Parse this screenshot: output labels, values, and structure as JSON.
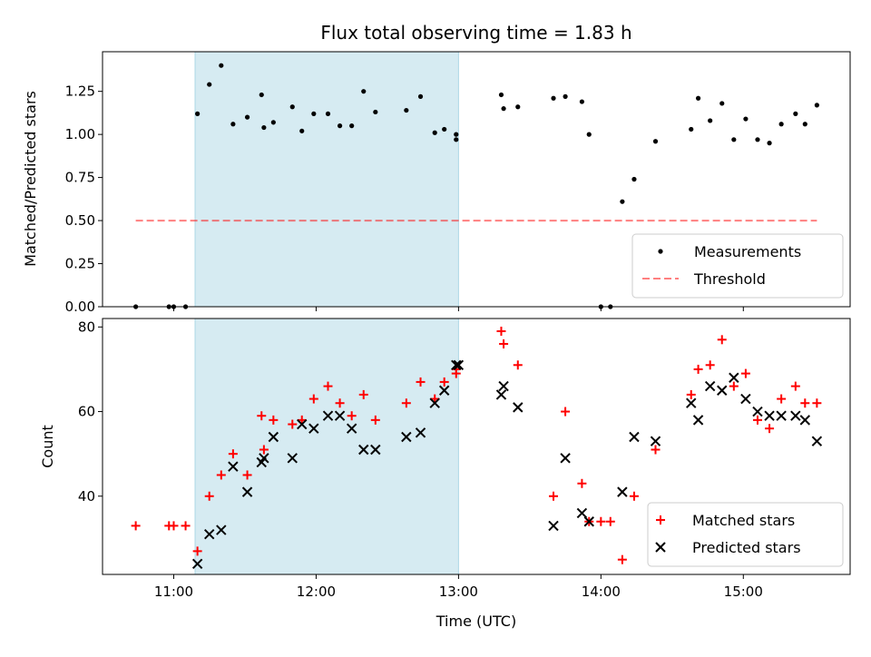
{
  "colors": {
    "shade": "#add8e6",
    "measurement": "#000000",
    "threshold": "#ff0000",
    "matched": "#ff0000",
    "predicted": "#000000"
  },
  "chart_data": [
    {
      "type": "scatter",
      "title": "Flux total observing time = 1.83 h",
      "xlabel": "",
      "ylabel": "Matched/Predicted stars",
      "x_unit": "time UTC",
      "xlim": [
        "10:30",
        "15:45"
      ],
      "ylim": [
        0,
        1.48
      ],
      "yticks": [
        0,
        0.25,
        0.5,
        0.75,
        1.0,
        1.25
      ],
      "ytick_labels": [
        "0.00",
        "0.25",
        "0.50",
        "0.75",
        "1.00",
        "1.25"
      ],
      "xticks": [
        "11:00",
        "12:00",
        "13:00",
        "14:00",
        "15:00"
      ],
      "shaded_span": [
        "11:09",
        "13:00"
      ],
      "legend": "lower-right",
      "series": [
        {
          "name": "Measurements",
          "marker": "dot",
          "points": [
            [
              "10:44",
              0.0
            ],
            [
              "10:58",
              0.0
            ],
            [
              "11:00",
              0.0
            ],
            [
              "11:05",
              0.0
            ],
            [
              "11:10",
              1.12
            ],
            [
              "11:15",
              1.29
            ],
            [
              "11:20",
              1.4
            ],
            [
              "11:25",
              1.06
            ],
            [
              "11:31",
              1.1
            ],
            [
              "11:37",
              1.23
            ],
            [
              "11:38",
              1.04
            ],
            [
              "11:42",
              1.07
            ],
            [
              "11:50",
              1.16
            ],
            [
              "11:54",
              1.02
            ],
            [
              "11:59",
              1.12
            ],
            [
              "12:05",
              1.12
            ],
            [
              "12:10",
              1.05
            ],
            [
              "12:15",
              1.05
            ],
            [
              "12:20",
              1.25
            ],
            [
              "12:25",
              1.13
            ],
            [
              "12:38",
              1.14
            ],
            [
              "12:44",
              1.22
            ],
            [
              "12:50",
              1.01
            ],
            [
              "12:54",
              1.03
            ],
            [
              "12:59",
              0.97
            ],
            [
              "12:59",
              1.0
            ],
            [
              "13:18",
              1.23
            ],
            [
              "13:19",
              1.15
            ],
            [
              "13:25",
              1.16
            ],
            [
              "13:40",
              1.21
            ],
            [
              "13:45",
              1.22
            ],
            [
              "13:52",
              1.19
            ],
            [
              "13:55",
              1.0
            ],
            [
              "14:00",
              0.0
            ],
            [
              "14:04",
              0.0
            ],
            [
              "14:09",
              0.61
            ],
            [
              "14:14",
              0.74
            ],
            [
              "14:23",
              0.96
            ],
            [
              "14:38",
              1.03
            ],
            [
              "14:41",
              1.21
            ],
            [
              "14:46",
              1.08
            ],
            [
              "14:51",
              1.18
            ],
            [
              "14:56",
              0.97
            ],
            [
              "15:01",
              1.09
            ],
            [
              "15:06",
              0.97
            ],
            [
              "15:11",
              0.95
            ],
            [
              "15:16",
              1.06
            ],
            [
              "15:22",
              1.12
            ],
            [
              "15:26",
              1.06
            ],
            [
              "15:31",
              1.17
            ]
          ]
        },
        {
          "name": "Threshold",
          "style": "dashed",
          "points": [
            [
              "10:44",
              0.5
            ],
            [
              "15:31",
              0.5
            ]
          ]
        }
      ]
    },
    {
      "type": "scatter",
      "title": "",
      "xlabel": "Time (UTC)",
      "ylabel": "Count",
      "x_unit": "time UTC",
      "xlim": [
        "10:30",
        "15:45"
      ],
      "ylim": [
        21.5,
        82
      ],
      "yticks": [
        40,
        60,
        80
      ],
      "ytick_labels": [
        "40",
        "60",
        "80"
      ],
      "xticks": [
        "11:00",
        "12:00",
        "13:00",
        "14:00",
        "15:00"
      ],
      "xtick_labels": [
        "11:00",
        "12:00",
        "13:00",
        "14:00",
        "15:00"
      ],
      "shaded_span": [
        "11:09",
        "13:00"
      ],
      "legend": "lower-right",
      "series": [
        {
          "name": "Matched stars",
          "marker": "plus",
          "points": [
            [
              "10:44",
              33
            ],
            [
              "10:58",
              33
            ],
            [
              "11:00",
              33
            ],
            [
              "11:05",
              33
            ],
            [
              "11:10",
              27
            ],
            [
              "11:15",
              40
            ],
            [
              "11:20",
              45
            ],
            [
              "11:25",
              50
            ],
            [
              "11:31",
              45
            ],
            [
              "11:37",
              59
            ],
            [
              "11:38",
              51
            ],
            [
              "11:42",
              58
            ],
            [
              "11:50",
              57
            ],
            [
              "11:54",
              58
            ],
            [
              "11:59",
              63
            ],
            [
              "12:05",
              66
            ],
            [
              "12:10",
              62
            ],
            [
              "12:15",
              59
            ],
            [
              "12:20",
              64
            ],
            [
              "12:25",
              58
            ],
            [
              "12:38",
              62
            ],
            [
              "12:44",
              67
            ],
            [
              "12:50",
              63
            ],
            [
              "12:54",
              67
            ],
            [
              "12:59",
              69
            ],
            [
              "12:59",
              70
            ],
            [
              "13:18",
              79
            ],
            [
              "13:19",
              76
            ],
            [
              "13:25",
              71
            ],
            [
              "13:40",
              40
            ],
            [
              "13:45",
              60
            ],
            [
              "13:52",
              43
            ],
            [
              "13:55",
              34
            ],
            [
              "14:00",
              34
            ],
            [
              "14:04",
              34
            ],
            [
              "14:09",
              25
            ],
            [
              "14:14",
              40
            ],
            [
              "14:23",
              51
            ],
            [
              "14:38",
              64
            ],
            [
              "14:41",
              70
            ],
            [
              "14:46",
              71
            ],
            [
              "14:51",
              77
            ],
            [
              "14:56",
              66
            ],
            [
              "15:01",
              69
            ],
            [
              "15:06",
              58
            ],
            [
              "15:11",
              56
            ],
            [
              "15:16",
              63
            ],
            [
              "15:22",
              66
            ],
            [
              "15:26",
              62
            ],
            [
              "15:31",
              62
            ]
          ]
        },
        {
          "name": "Predicted stars",
          "marker": "x",
          "points": [
            [
              "11:10",
              24
            ],
            [
              "11:15",
              31
            ],
            [
              "11:20",
              32
            ],
            [
              "11:25",
              47
            ],
            [
              "11:31",
              41
            ],
            [
              "11:37",
              48
            ],
            [
              "11:38",
              49
            ],
            [
              "11:42",
              54
            ],
            [
              "11:50",
              49
            ],
            [
              "11:54",
              57
            ],
            [
              "11:59",
              56
            ],
            [
              "12:05",
              59
            ],
            [
              "12:10",
              59
            ],
            [
              "12:15",
              56
            ],
            [
              "12:20",
              51
            ],
            [
              "12:25",
              51
            ],
            [
              "12:38",
              54
            ],
            [
              "12:44",
              55
            ],
            [
              "12:50",
              62
            ],
            [
              "12:54",
              65
            ],
            [
              "12:59",
              71
            ],
            [
              "13:00",
              71
            ],
            [
              "13:18",
              64
            ],
            [
              "13:19",
              66
            ],
            [
              "13:25",
              61
            ],
            [
              "13:40",
              33
            ],
            [
              "13:45",
              49
            ],
            [
              "13:52",
              36
            ],
            [
              "13:55",
              34
            ],
            [
              "14:09",
              41
            ],
            [
              "14:14",
              54
            ],
            [
              "14:23",
              53
            ],
            [
              "14:38",
              62
            ],
            [
              "14:41",
              58
            ],
            [
              "14:46",
              66
            ],
            [
              "14:51",
              65
            ],
            [
              "14:56",
              68
            ],
            [
              "15:01",
              63
            ],
            [
              "15:06",
              60
            ],
            [
              "15:11",
              59
            ],
            [
              "15:16",
              59
            ],
            [
              "15:22",
              59
            ],
            [
              "15:26",
              58
            ],
            [
              "15:31",
              53
            ]
          ]
        }
      ]
    }
  ]
}
